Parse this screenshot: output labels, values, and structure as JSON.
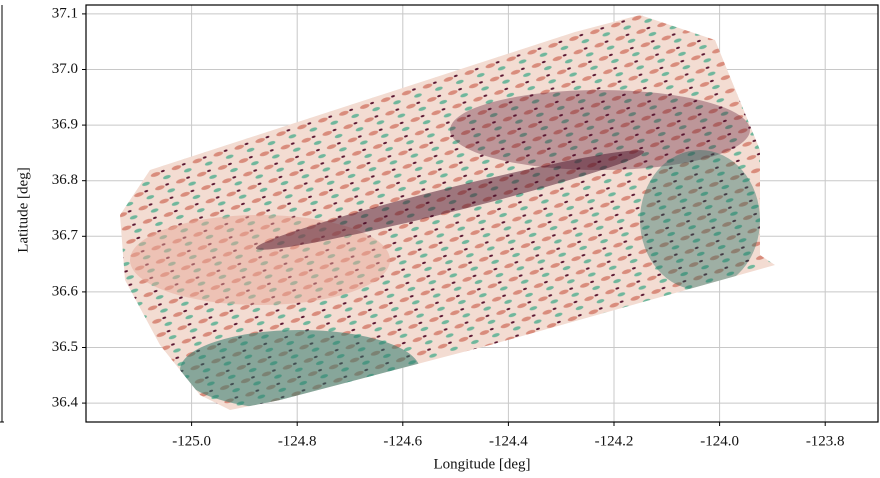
{
  "chart_data": {
    "type": "map",
    "xlabel": "Longitude [deg]",
    "ylabel": "Latitude [deg]",
    "xlim": [
      -125.2,
      -123.7
    ],
    "ylim": [
      36.366,
      37.116
    ],
    "xticks": [
      {
        "value": -125,
        "label": "-125.0"
      },
      -124.8,
      -124.6,
      -124.4,
      -124.2,
      {
        "value": -124,
        "label": "-124.0"
      },
      -123.8
    ],
    "yticks": [
      36.4,
      36.5,
      36.6,
      36.7,
      36.8,
      36.9,
      {
        "value": 37,
        "label": "37.0"
      },
      37.1
    ],
    "grid": true
  }
}
